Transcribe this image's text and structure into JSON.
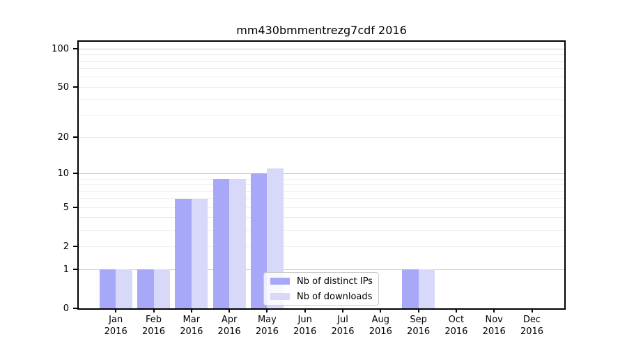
{
  "title": "mm430bmmentrezg7cdf 2016",
  "year": "2016",
  "colors": {
    "bar_distinct_ips": "#a8a8f8",
    "bar_downloads": "#d8d8f8",
    "grid_major": "#c9c9c9",
    "grid_minor": "#ececec",
    "spine": "#000000",
    "background": "#ffffff"
  },
  "legend": {
    "items": [
      {
        "label": "Nb of distinct IPs",
        "color": "#a8a8f8"
      },
      {
        "label": "Nb of downloads",
        "color": "#d8d8f8"
      }
    ]
  },
  "chart_data": {
    "type": "bar",
    "title": "mm430bmmentrezg7cdf 2016",
    "months": [
      "Jan",
      "Feb",
      "Mar",
      "Apr",
      "May",
      "Jun",
      "Jul",
      "Aug",
      "Sep",
      "Oct",
      "Nov",
      "Dec"
    ],
    "year": "2016",
    "categories": [
      "Jan 2016",
      "Feb 2016",
      "Mar 2016",
      "Apr 2016",
      "May 2016",
      "Jun 2016",
      "Jul 2016",
      "Aug 2016",
      "Sep 2016",
      "Oct 2016",
      "Nov 2016",
      "Dec 2016"
    ],
    "series": [
      {
        "name": "Nb of distinct IPs",
        "color": "#a8a8f8",
        "values": [
          1,
          1,
          6,
          9,
          10,
          0,
          0,
          0,
          1,
          0,
          0,
          0
        ]
      },
      {
        "name": "Nb of downloads",
        "color": "#d8d8f8",
        "values": [
          1,
          1,
          6,
          9,
          11,
          0,
          0,
          0,
          1,
          0,
          0,
          0
        ]
      }
    ],
    "xlabel": "",
    "ylabel": "",
    "yscale": "log10(value+1)",
    "ylim": [
      0,
      115
    ],
    "ytick_values": [
      0,
      1,
      2,
      5,
      10,
      20,
      50,
      100
    ],
    "ytick_labels": [
      "0",
      "1",
      "2",
      "5",
      "10",
      "20",
      "50",
      "100"
    ],
    "major_gridlines": [
      1,
      10,
      100
    ],
    "minor_gridlines": [
      2,
      3,
      4,
      5,
      6,
      7,
      8,
      9,
      20,
      30,
      40,
      50,
      60,
      70,
      80,
      90
    ],
    "grid": true,
    "legend_position": "inside lower-center"
  }
}
